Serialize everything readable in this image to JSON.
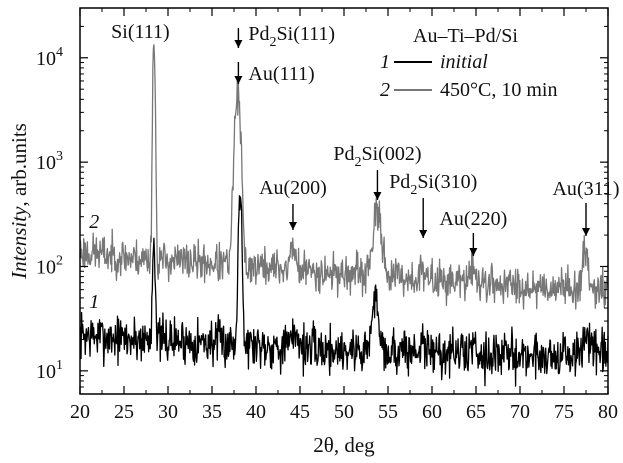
{
  "chart_data": {
    "type": "line",
    "xlabel": "2θ, deg",
    "ylabel_italic": "Intensity",
    "ylabel_rest": ", arb.units",
    "xlim": [
      20,
      80
    ],
    "ylim": [
      6,
      30000
    ],
    "yscale": "log",
    "grid": false,
    "x_ticks": [
      20,
      25,
      30,
      35,
      40,
      45,
      50,
      55,
      60,
      65,
      70,
      75,
      80
    ],
    "y_ticks": [
      {
        "value": 10,
        "base": "10",
        "exp": "1"
      },
      {
        "value": 100,
        "base": "10",
        "exp": "2"
      },
      {
        "value": 1000,
        "base": "10",
        "exp": "3"
      },
      {
        "value": 10000,
        "base": "10",
        "exp": "4"
      }
    ],
    "legend": {
      "placement": "top-right",
      "title": "Au–Ti–Pd/Si",
      "entries": [
        {
          "num": "1",
          "label": "initial",
          "label_italic": true,
          "color": "#000000"
        },
        {
          "num": "2",
          "label": "450°C, 10 min",
          "label_italic": false,
          "color": "#777777"
        }
      ]
    },
    "series": [
      {
        "id": "s1",
        "curve_label": "1",
        "color": "#000000",
        "baseline": 20,
        "noise_log": 0.11,
        "seed": 7,
        "baseline_points": [
          [
            20,
            22
          ],
          [
            26,
            20
          ],
          [
            27.8,
            20
          ],
          [
            40,
            18
          ],
          [
            48,
            16
          ],
          [
            60,
            15
          ],
          [
            70,
            14
          ],
          [
            80,
            14
          ]
        ],
        "peaks": [
          {
            "x": 28.4,
            "height": 170,
            "width": 0.12
          },
          {
            "x": 38.2,
            "height": 620,
            "width": 0.14
          },
          {
            "x": 44.5,
            "height": 7,
            "width": 0.3
          },
          {
            "x": 53.6,
            "height": 32,
            "width": 0.35
          },
          {
            "x": 58.9,
            "height": 12,
            "width": 0.1
          },
          {
            "x": 64.7,
            "height": 4,
            "width": 0.3
          },
          {
            "x": 77.6,
            "height": 10,
            "width": 0.3
          }
        ]
      },
      {
        "id": "s2",
        "curve_label": "2",
        "color": "#777777",
        "baseline": 80,
        "noise_log": 0.09,
        "seed": 23,
        "baseline_points": [
          [
            20,
            140
          ],
          [
            26,
            120
          ],
          [
            40,
            100
          ],
          [
            50,
            85
          ],
          [
            60,
            75
          ],
          [
            70,
            65
          ],
          [
            80,
            62
          ]
        ],
        "peaks": [
          {
            "x": 28.4,
            "height": 14000,
            "width": 0.1
          },
          {
            "x": 37.9,
            "height": 4200,
            "width": 0.26
          },
          {
            "x": 44.2,
            "height": 70,
            "width": 0.25
          },
          {
            "x": 53.8,
            "height": 220,
            "width": 0.45
          },
          {
            "x": 58.9,
            "height": 30,
            "width": 0.1
          },
          {
            "x": 64.7,
            "height": 25,
            "width": 0.3
          },
          {
            "x": 77.5,
            "height": 75,
            "width": 0.28
          }
        ]
      }
    ],
    "annotations": [
      {
        "id": "si111",
        "label": "Si",
        "sub": "",
        "tail": "(111)",
        "x": 28.0,
        "arrow": false,
        "arrow_to_y": 0
      },
      {
        "id": "pd2si111",
        "label": "Pd",
        "sub": "2",
        "tail": "Si(111)",
        "x": 38.0,
        "arrow": true,
        "arrow_to_y": 6500
      },
      {
        "id": "au111",
        "label": "Au",
        "sub": "",
        "tail": "(111)",
        "x": 38.0,
        "arrow": true,
        "arrow_to_y": 5200
      },
      {
        "id": "au200",
        "label": "Au",
        "sub": "",
        "tail": "(200)",
        "x": 44.2,
        "arrow": true,
        "arrow_to_y": 150
      },
      {
        "id": "pd2si002",
        "label": "Pd",
        "sub": "2",
        "tail": "Si(002)",
        "x": 53.8,
        "arrow": true,
        "arrow_to_y": 440
      },
      {
        "id": "pd2si310",
        "label": "Pd",
        "sub": "2",
        "tail": "Si(310)",
        "x": 59.0,
        "arrow": true,
        "arrow_to_y": 140
      },
      {
        "id": "au220",
        "label": "Au",
        "sub": "",
        "tail": "(220)",
        "x": 64.7,
        "arrow": true,
        "arrow_to_y": 110
      },
      {
        "id": "au311",
        "label": "Au",
        "sub": "",
        "tail": "(311)",
        "x": 77.5,
        "arrow": true,
        "arrow_to_y": 150
      }
    ]
  }
}
